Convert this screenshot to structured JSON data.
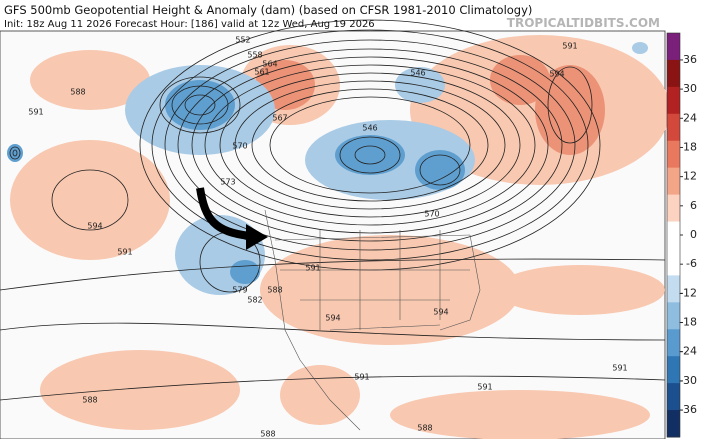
{
  "header": {
    "title": "GFS 500mb Geopotential Height & Anomaly (dam) (based on CFSR 1981-2010 Climatology)",
    "init": "Init: 18z Aug 11 2026   Forecast Hour: [186]   valid at 12z Wed, Aug 19 2026",
    "watermark": "TROPICALTIDBITS.COM"
  },
  "colorbar": {
    "ticks": [
      36,
      30,
      24,
      18,
      12,
      6,
      0,
      -6,
      -12,
      -18,
      -24,
      -30,
      -36
    ],
    "colors": [
      "#7a1f7a",
      "#8a1414",
      "#b32222",
      "#d2483a",
      "#e8795e",
      "#f3a587",
      "#fbd3c0",
      "#ffffff",
      "#ffffff",
      "#c3dcef",
      "#8fbde0",
      "#5a9bcf",
      "#2f76b5",
      "#1c4f8e",
      "#122f63"
    ]
  },
  "contour_labels": [
    "588",
    "591",
    "594",
    "591",
    "588",
    "552",
    "558",
    "561",
    "564",
    "567",
    "570",
    "573",
    "579",
    "582",
    "588",
    "591",
    "594",
    "546",
    "591",
    "594",
    "594",
    "591",
    "588",
    "588",
    "591",
    "591",
    "570",
    "546"
  ]
}
